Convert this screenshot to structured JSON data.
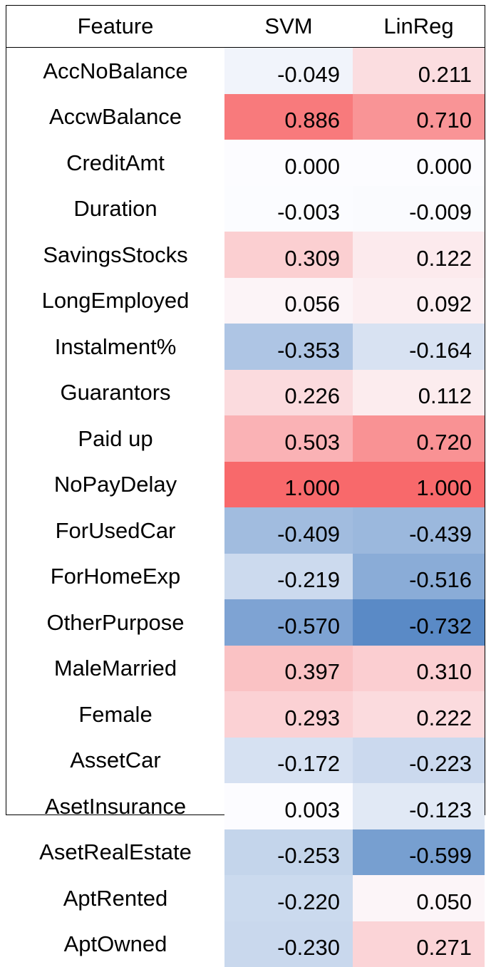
{
  "chart_data": {
    "type": "heatmap",
    "columns": [
      "Feature",
      "SVM",
      "LinReg"
    ],
    "rows": [
      {
        "feature": "AccNoBalance",
        "svm": "-0.049",
        "linreg": "0.211"
      },
      {
        "feature": "AccwBalance",
        "svm": "0.886",
        "linreg": "0.710"
      },
      {
        "feature": "CreditAmt",
        "svm": "0.000",
        "linreg": "0.000"
      },
      {
        "feature": "Duration",
        "svm": "-0.003",
        "linreg": "-0.009"
      },
      {
        "feature": "SavingsStocks",
        "svm": "0.309",
        "linreg": "0.122"
      },
      {
        "feature": "LongEmployed",
        "svm": "0.056",
        "linreg": "0.092"
      },
      {
        "feature": "Instalment%",
        "svm": "-0.353",
        "linreg": "-0.164"
      },
      {
        "feature": "Guarantors",
        "svm": "0.226",
        "linreg": "0.112"
      },
      {
        "feature": "Paid up",
        "svm": "0.503",
        "linreg": "0.720"
      },
      {
        "feature": "NoPayDelay",
        "svm": "1.000",
        "linreg": "1.000"
      },
      {
        "feature": "ForUsedCar",
        "svm": "-0.409",
        "linreg": "-0.439"
      },
      {
        "feature": "ForHomeExp",
        "svm": "-0.219",
        "linreg": "-0.516"
      },
      {
        "feature": "OtherPurpose",
        "svm": "-0.570",
        "linreg": "-0.732"
      },
      {
        "feature": "MaleMarried",
        "svm": "0.397",
        "linreg": "0.310"
      },
      {
        "feature": "Female",
        "svm": "0.293",
        "linreg": "0.222"
      },
      {
        "feature": "AssetCar",
        "svm": "-0.172",
        "linreg": "-0.223"
      },
      {
        "feature": "AsetInsurance",
        "svm": "0.003",
        "linreg": "-0.123"
      },
      {
        "feature": "AsetRealEstate",
        "svm": "-0.253",
        "linreg": "-0.599"
      },
      {
        "feature": "AptRented",
        "svm": "-0.220",
        "linreg": "0.050"
      },
      {
        "feature": "AptOwned",
        "svm": "-0.230",
        "linreg": "0.271"
      }
    ],
    "color_scale": {
      "negative": "#5a8ac6",
      "neutral": "#fcfcff",
      "positive": "#f8696b",
      "min": -0.732,
      "max": 1.0
    }
  }
}
